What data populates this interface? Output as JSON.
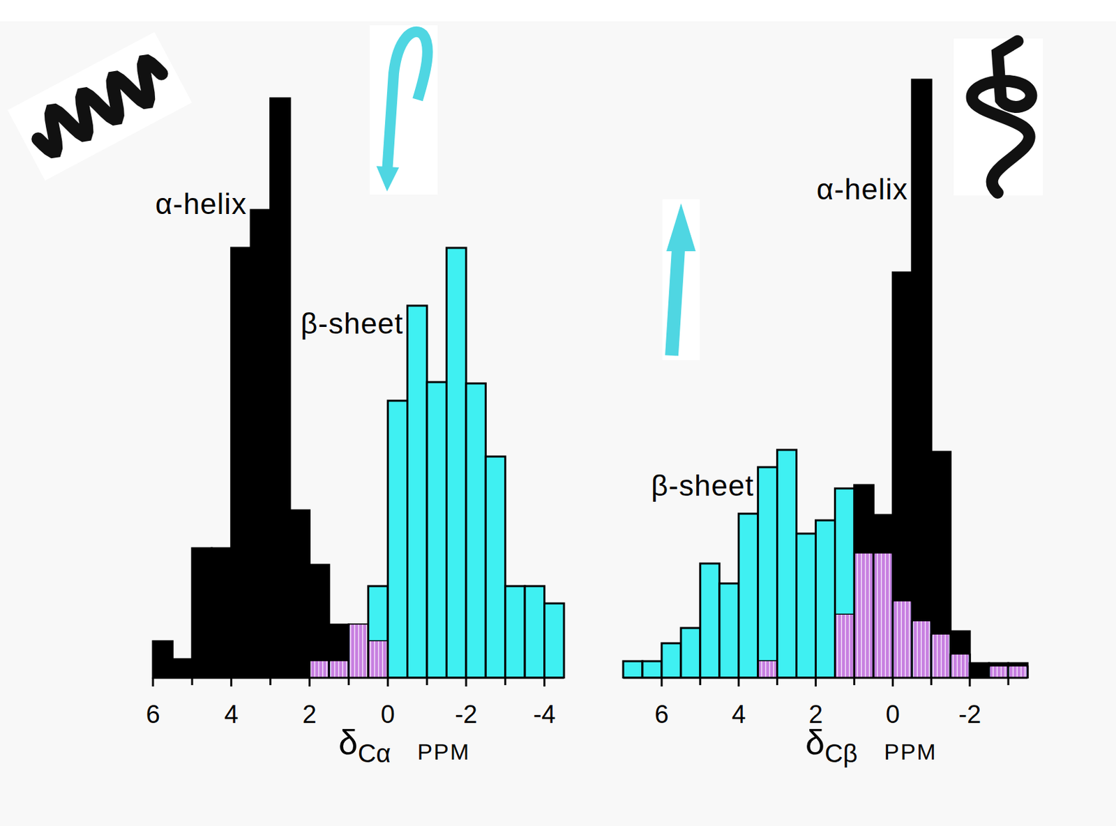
{
  "chart_data": [
    {
      "type": "histogram",
      "bins": [
        6,
        5.5,
        5,
        4.5,
        4,
        3.5,
        3,
        2.5,
        2,
        1.5,
        1,
        0.5,
        0,
        -0.5,
        -1,
        -1.5,
        -2,
        -2.5,
        -3,
        -3.5,
        -4,
        -4.5
      ],
      "series": [
        {
          "name": "α-helix",
          "color": "#000000",
          "values": [
            5.5,
            2.8,
            19.5,
            19.5,
            64.7,
            70.4,
            87.2,
            25.2,
            17,
            8,
            8,
            5.5,
            0,
            0,
            0,
            0,
            0,
            0,
            0,
            0,
            0
          ]
        },
        {
          "name": "β-sheet",
          "color": "#3ff0f2",
          "values": [
            0,
            0,
            0,
            0,
            0,
            0,
            0,
            0,
            2.5,
            2.5,
            8,
            13.8,
            41.7,
            56,
            44.5,
            64.7,
            44.3,
            33.3,
            13.8,
            13.8,
            11.2
          ]
        }
      ],
      "xlim": [
        6,
        -4.5
      ],
      "xticks": [
        6,
        4,
        2,
        0,
        -2,
        -4
      ],
      "minor_xticks": [
        5,
        3,
        1,
        -1,
        -3
      ],
      "ylim": [
        0,
        90
      ],
      "tick_labels": "x",
      "xlabel": "δ",
      "xlabel_subscript": "Cα",
      "xlabel_unit": "PPM"
    },
    {
      "type": "histogram",
      "bins": [
        7,
        6.5,
        6,
        5.5,
        5,
        4.5,
        4,
        3.5,
        3,
        2.5,
        2,
        1.5,
        1,
        0.5,
        0,
        -0.5,
        -1,
        -1.5,
        -2,
        -2.5,
        -3,
        -3.5
      ],
      "series": [
        {
          "name": "α-helix",
          "color": "#000000",
          "values": [
            0,
            0,
            0,
            0,
            0,
            0,
            0,
            2.5,
            0,
            0,
            0,
            9.5,
            29,
            24.5,
            61,
            90,
            34,
            7,
            2.2,
            2.2,
            2.2
          ]
        },
        {
          "name": "β-sheet",
          "color": "#3ff0f2",
          "values": [
            2.5,
            2.5,
            5.2,
            7.5,
            17.2,
            14.2,
            24.7,
            31.7,
            34.3,
            21.7,
            23.7,
            28.5,
            18.7,
            18.7,
            11.5,
            8.5,
            6.5,
            3.5,
            0,
            1.7,
            1.7
          ]
        }
      ],
      "xlim": [
        7,
        -3.5
      ],
      "xticks": [
        6,
        4,
        2,
        0,
        -2
      ],
      "minor_xticks": [
        5,
        3,
        1,
        -1,
        -3
      ],
      "ylim": [
        0,
        90
      ],
      "tick_labels": "x",
      "xlabel": "δ",
      "xlabel_subscript": "Cβ",
      "xlabel_unit": "PPM"
    }
  ]
}
